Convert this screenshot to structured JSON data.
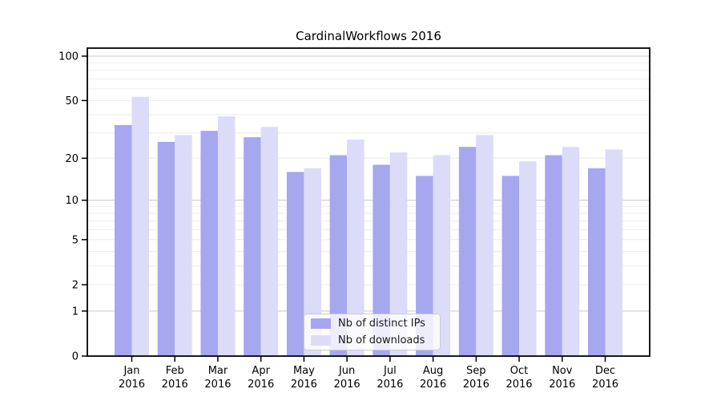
{
  "chart_data": {
    "type": "bar",
    "title": "CardinalWorkflows 2016",
    "year_label": "2016",
    "categories": [
      "Jan",
      "Feb",
      "Mar",
      "Apr",
      "May",
      "Jun",
      "Jul",
      "Aug",
      "Sep",
      "Oct",
      "Nov",
      "Dec"
    ],
    "series": [
      {
        "name": "Nb of distinct IPs",
        "color": "#a7a7ef",
        "values": [
          34,
          26,
          31,
          28,
          16,
          21,
          18,
          15,
          24,
          15,
          21,
          17
        ]
      },
      {
        "name": "Nb of downloads",
        "color": "#dcdcf9",
        "values": [
          53,
          29,
          39,
          33,
          17,
          27,
          22,
          21,
          29,
          19,
          24,
          23
        ]
      }
    ],
    "y_axis": {
      "scale": "log1p",
      "ticks": [
        0,
        1,
        2,
        5,
        10,
        20,
        50,
        100
      ],
      "gridlines_major": [
        1,
        10,
        100
      ],
      "gridlines_minor": [
        2,
        3,
        4,
        5,
        6,
        7,
        8,
        9,
        20,
        30,
        40,
        50,
        60,
        70,
        80,
        90
      ]
    },
    "legend_position": "lower center",
    "colors": {
      "grid_major": "#c9c9c9",
      "grid_minor": "#ececec",
      "spine": "#000000",
      "tick_text": "#000000",
      "background": "#ffffff"
    }
  }
}
